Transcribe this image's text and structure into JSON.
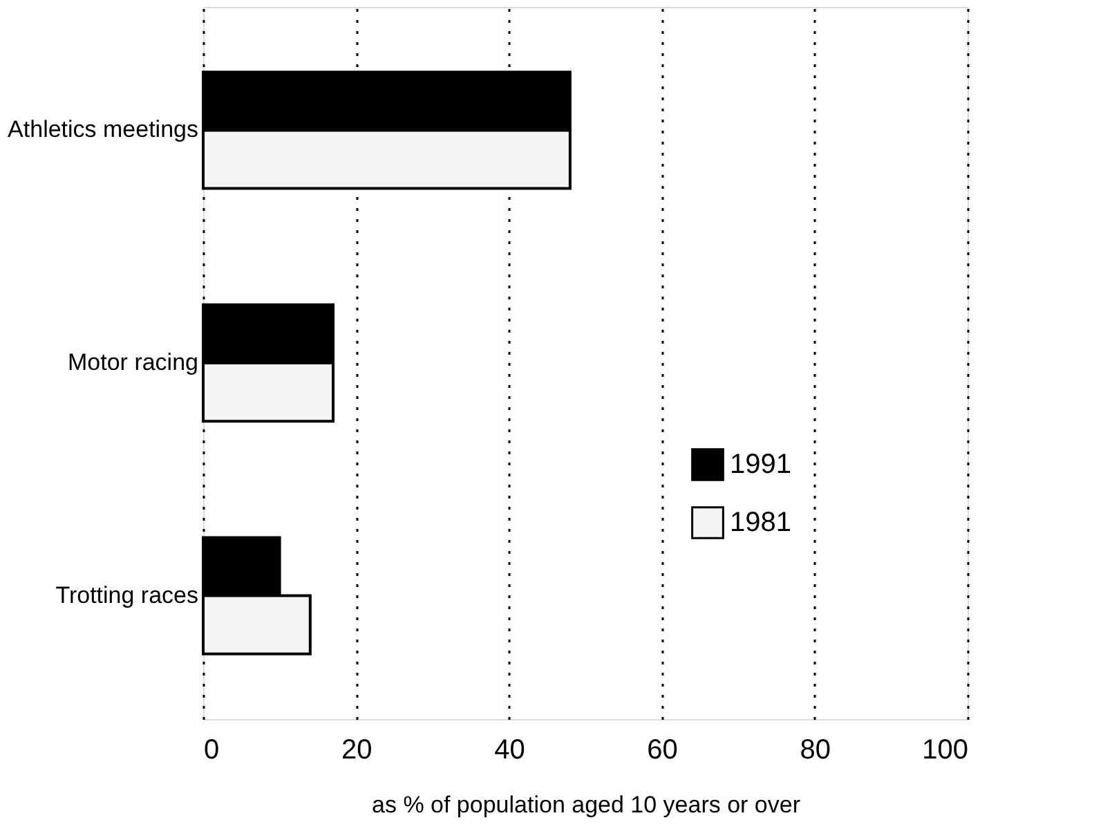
{
  "chart_data": {
    "type": "bar",
    "orientation": "horizontal",
    "xlabel": "as % of population aged 10 years or over",
    "categories": [
      "Athletics meetings",
      "Motor racing",
      "Trotting races"
    ],
    "series": [
      {
        "name": "1991",
        "color": "#000000",
        "values": [
          48,
          17,
          10
        ]
      },
      {
        "name": "1981",
        "color": "#f4f4f4",
        "values": [
          48,
          17,
          14
        ]
      }
    ],
    "xlim": [
      0,
      100
    ],
    "xticks": [
      0,
      20,
      40,
      60,
      80,
      100
    ],
    "grid": "x",
    "legend": "bottom right"
  }
}
